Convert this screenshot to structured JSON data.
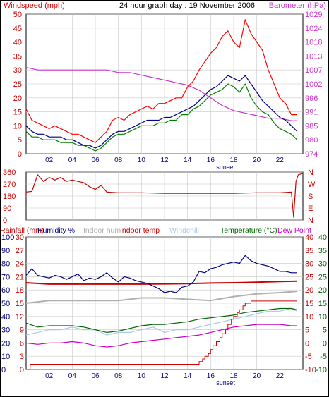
{
  "colors": {
    "frame": "#000000",
    "grid": "#c8c8c8",
    "windspeed": "#e00000",
    "gust": "#ff0000",
    "avg": "#000080",
    "green": "#008000",
    "barometer": "#cc33cc",
    "humidity": "#000080",
    "indoor_hum": "#b0b0b0",
    "indoor_temp": "#cc0000",
    "windchill": "#a8c8e8",
    "temperature": "#006400",
    "dewpoint": "#cc00cc",
    "rainfall": "#cc0000"
  },
  "chart_data": [
    {
      "type": "line",
      "title": "24 hour graph day : 19 November 2006",
      "ylabel_left": "Windspeed (mph)",
      "ylabel_right": "Barometer (hPa)",
      "x_ticks": [
        "02",
        "04",
        "06",
        "08",
        "10",
        "12",
        "14",
        "16",
        "18",
        "20",
        "22"
      ],
      "x_annotation": "sunset",
      "sunset_hour": 17.3,
      "xlim": [
        0,
        24
      ],
      "ylim_left": [
        0,
        50
      ],
      "y_ticks_left": [
        "0",
        "5",
        "10",
        "15",
        "20",
        "25",
        "30",
        "35",
        "40",
        "45",
        "50"
      ],
      "ylim_right": [
        974,
        1029
      ],
      "y_ticks_right": [
        "974",
        "980",
        "985",
        "991",
        "996",
        "1002",
        "1007",
        "1013",
        "1018",
        "1024",
        "1029"
      ],
      "grid": true,
      "series": [
        {
          "role": "gust",
          "axis": "left",
          "x": [
            0,
            0.5,
            1,
            1.5,
            2,
            2.5,
            3,
            3.5,
            4,
            4.5,
            5,
            5.5,
            6,
            6.5,
            7,
            7.5,
            8,
            8.5,
            9,
            9.5,
            10,
            10.5,
            11,
            11.5,
            12,
            12.5,
            13,
            13.5,
            14,
            14.5,
            15,
            15.5,
            16,
            16.5,
            17,
            17.5,
            18,
            18.5,
            19,
            19.5,
            20,
            20.5,
            21,
            21.5,
            22,
            22.5,
            23,
            23.5
          ],
          "values": [
            16,
            12,
            11,
            10,
            9,
            10,
            9,
            8,
            7,
            7,
            6,
            5,
            4,
            6,
            8,
            12,
            13,
            12,
            14,
            15,
            16,
            17,
            16,
            18,
            18,
            19,
            20,
            20,
            24,
            26,
            30,
            33,
            36,
            38,
            42,
            44,
            40,
            38,
            48,
            43,
            40,
            37,
            30,
            25,
            20,
            18,
            14,
            14
          ]
        },
        {
          "role": "avg",
          "axis": "left",
          "x": [
            0,
            0.5,
            1,
            1.5,
            2,
            2.5,
            3,
            3.5,
            4,
            4.5,
            5,
            5.5,
            6,
            6.5,
            7,
            7.5,
            8,
            8.5,
            9,
            9.5,
            10,
            10.5,
            11,
            11.5,
            12,
            12.5,
            13,
            13.5,
            14,
            14.5,
            15,
            15.5,
            16,
            16.5,
            17,
            17.5,
            18,
            18.5,
            19,
            19.5,
            20,
            20.5,
            21,
            21.5,
            22,
            22.5,
            23,
            23.5
          ],
          "values": [
            10,
            8,
            7,
            7,
            6,
            6,
            6,
            5,
            5,
            4,
            3,
            3,
            2,
            3,
            5,
            7,
            8,
            8,
            9,
            10,
            11,
            12,
            12,
            12,
            13,
            13,
            14,
            15,
            16,
            17,
            19,
            21,
            23,
            24,
            26,
            28,
            27,
            26,
            28,
            25,
            22,
            19,
            17,
            15,
            13,
            12,
            10,
            8
          ]
        },
        {
          "role": "green",
          "axis": "left",
          "x": [
            0,
            0.5,
            1,
            1.5,
            2,
            2.5,
            3,
            3.5,
            4,
            4.5,
            5,
            5.5,
            6,
            6.5,
            7,
            7.5,
            8,
            8.5,
            9,
            9.5,
            10,
            10.5,
            11,
            11.5,
            12,
            12.5,
            13,
            13.5,
            14,
            14.5,
            15,
            15.5,
            16,
            16.5,
            17,
            17.5,
            18,
            18.5,
            19,
            19.5,
            20,
            20.5,
            21,
            21.5,
            22,
            22.5,
            23,
            23.5
          ],
          "values": [
            8,
            6,
            6,
            5,
            5,
            5,
            4,
            4,
            4,
            3,
            3,
            2,
            1,
            2,
            4,
            6,
            7,
            7,
            8,
            9,
            10,
            10,
            10,
            11,
            11,
            12,
            12,
            14,
            14,
            16,
            17,
            19,
            21,
            22,
            23,
            25,
            24,
            22,
            25,
            20,
            17,
            15,
            14,
            11,
            9,
            8,
            7,
            5
          ]
        },
        {
          "role": "barometer",
          "axis": "right",
          "x": [
            0,
            1,
            2,
            3,
            4,
            5,
            6,
            7,
            8,
            9,
            10,
            11,
            12,
            13,
            14,
            15,
            16,
            17,
            18,
            19,
            20,
            21,
            22,
            23,
            23.5
          ],
          "values": [
            1008,
            1007,
            1007,
            1007,
            1007,
            1007,
            1007,
            1007,
            1006,
            1006,
            1005,
            1004,
            1003,
            1002,
            1001,
            999,
            996,
            993,
            991,
            990,
            989,
            988,
            988,
            987,
            987
          ]
        }
      ]
    },
    {
      "type": "line",
      "y_ticks_left": [
        "0",
        "90",
        "180",
        "270",
        "360"
      ],
      "y_labels_right": [
        "N",
        "W",
        "S",
        "E",
        "N"
      ],
      "ylim": [
        0,
        360
      ],
      "xlim": [
        0,
        24
      ],
      "series": [
        {
          "role": "wind_direction",
          "x": [
            0,
            0.5,
            1,
            1.5,
            2,
            2.5,
            3,
            3.5,
            4,
            4.5,
            5,
            5.5,
            6,
            6.5,
            7,
            8,
            10,
            12,
            14,
            16,
            18,
            20,
            22,
            23,
            23.2,
            23.4,
            23.6,
            24
          ],
          "values": [
            210,
            215,
            340,
            290,
            320,
            300,
            320,
            290,
            300,
            290,
            280,
            250,
            230,
            260,
            210,
            205,
            205,
            200,
            200,
            200,
            200,
            205,
            205,
            210,
            20,
            290,
            340,
            350
          ]
        }
      ]
    },
    {
      "type": "line",
      "legend": [
        "Rainfall (mm)",
        "Humidity %",
        "Indoor hum",
        "Indoor temp",
        "Windchill",
        "Temperature (°C)",
        "Dew Point"
      ],
      "x_ticks": [
        "02",
        "04",
        "06",
        "08",
        "10",
        "12",
        "14",
        "16",
        "18",
        "20",
        "22"
      ],
      "x_annotation": "sunset",
      "xlim": [
        0,
        24
      ],
      "y_ticks_rain": [
        "0",
        "3",
        "6",
        "9",
        "12",
        "15",
        "18",
        "21",
        "24",
        "27",
        "30"
      ],
      "y_ticks_hum": [
        "0",
        "10",
        "20",
        "30",
        "40",
        "50",
        "60",
        "70",
        "80",
        "90",
        "100"
      ],
      "y_ticks_temp": [
        "-10",
        "-5",
        "0",
        "5",
        "10",
        "15",
        "20",
        "25",
        "30",
        "35",
        "40"
      ],
      "ylim_rain": [
        0,
        30
      ],
      "ylim_hum": [
        0,
        100
      ],
      "ylim_temp": [
        -10,
        40
      ],
      "series": [
        {
          "role": "humidity",
          "axis": "hum",
          "x": [
            0,
            0.5,
            1,
            1.5,
            2,
            2.5,
            3,
            3.5,
            4,
            4.5,
            5,
            5.5,
            6,
            6.5,
            7,
            7.5,
            8,
            8.5,
            9,
            9.5,
            10,
            10.5,
            11,
            11.5,
            12,
            12.5,
            13,
            13.5,
            14,
            14.5,
            15,
            15.5,
            16,
            16.5,
            17,
            17.5,
            18,
            18.5,
            19,
            19.5,
            20,
            20.5,
            21,
            21.5,
            22,
            22.5,
            23,
            23.5
          ],
          "values": [
            71,
            76,
            71,
            70,
            69,
            71,
            70,
            68,
            70,
            72,
            67,
            69,
            68,
            70,
            73,
            69,
            66,
            70,
            69,
            67,
            66,
            65,
            63,
            61,
            58,
            59,
            58,
            62,
            63,
            66,
            74,
            73,
            76,
            77,
            79,
            80,
            81,
            80,
            86,
            82,
            80,
            79,
            78,
            76,
            74,
            74,
            73,
            73
          ]
        },
        {
          "role": "indoor_hum",
          "axis": "hum",
          "x": [
            0,
            2,
            4,
            6,
            8,
            10,
            12,
            14,
            16,
            18,
            20,
            22,
            23.5
          ],
          "values": [
            50,
            52,
            52,
            52,
            52,
            54,
            54,
            53,
            52,
            55,
            57,
            58,
            59
          ]
        },
        {
          "role": "indoor_temp",
          "axis": "temp",
          "x": [
            0,
            2,
            4,
            6,
            8,
            10,
            12,
            14,
            16,
            18,
            20,
            22,
            23.5
          ],
          "values": [
            22.7,
            22.2,
            22.2,
            22.2,
            22.2,
            22.2,
            22.3,
            22.4,
            22.6,
            22.7,
            22.9,
            23.2,
            23.3
          ]
        },
        {
          "role": "windchill",
          "axis": "temp",
          "x": [
            0,
            1,
            2,
            3,
            4,
            5,
            6,
            7,
            8,
            9,
            10,
            11,
            12,
            13,
            14,
            15,
            16,
            17,
            18,
            19,
            20,
            21,
            22,
            23,
            23.5
          ],
          "values": [
            3,
            4,
            5,
            5,
            6,
            5,
            5,
            3,
            4,
            4,
            5,
            6,
            4,
            5,
            5,
            6,
            7,
            8,
            9,
            10,
            11,
            12,
            12,
            13,
            12
          ]
        },
        {
          "role": "temperature",
          "axis": "temp",
          "x": [
            0,
            1,
            2,
            3,
            4,
            5,
            6,
            7,
            8,
            9,
            10,
            11,
            12,
            13,
            14,
            15,
            16,
            17,
            18,
            19,
            20,
            21,
            22,
            23,
            23.5
          ],
          "values": [
            7.5,
            6,
            6.5,
            6.5,
            6.5,
            6,
            5,
            4,
            4.5,
            5.5,
            6.5,
            7,
            7,
            7.5,
            8,
            9,
            9.5,
            10,
            10.5,
            11.5,
            12,
            12.5,
            13,
            13,
            12.5
          ]
        },
        {
          "role": "dewpoint",
          "axis": "temp",
          "x": [
            0,
            1,
            2,
            3,
            4,
            5,
            6,
            7,
            8,
            9,
            10,
            11,
            12,
            13,
            14,
            15,
            16,
            17,
            18,
            19,
            20,
            21,
            22,
            23,
            23.5
          ],
          "values": [
            0,
            -0.5,
            0,
            0,
            0.5,
            0,
            -1,
            -1.5,
            -1,
            0,
            0.5,
            1,
            1.5,
            2,
            2.5,
            3,
            4,
            5,
            6,
            6.5,
            7,
            7,
            7,
            6.5,
            6.5
          ]
        },
        {
          "role": "rainfall",
          "axis": "rain",
          "x": [
            0,
            0.3,
            0.35,
            14.8,
            15,
            15.3,
            15.5,
            15.8,
            16,
            16.2,
            16.5,
            16.8,
            17,
            17.3,
            17.5,
            17.8,
            18,
            18.3,
            18.5,
            18.8,
            19,
            19.5,
            23,
            23.5
          ],
          "values": [
            0,
            0,
            1.2,
            1.2,
            1.8,
            2.4,
            3,
            3.6,
            4.5,
            5.4,
            6.3,
            7.2,
            8.1,
            9,
            10.2,
            11.4,
            12,
            12.9,
            13.5,
            14.4,
            15,
            15.5,
            15.5,
            15.5
          ]
        }
      ]
    }
  ]
}
